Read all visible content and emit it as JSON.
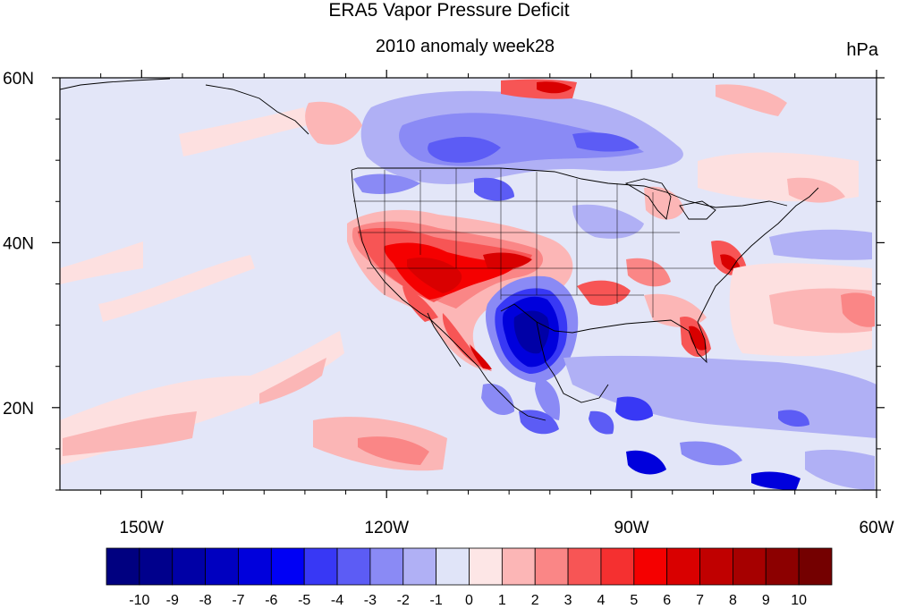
{
  "title": "ERA5 Vapor Pressure Deficit",
  "subtitle": "2010 anomaly week28",
  "units": "hPa",
  "map": {
    "lon_range": [
      -160,
      -60
    ],
    "lat_range": [
      10,
      60
    ],
    "x_ticks": [
      {
        "lon": -150,
        "label": "150W"
      },
      {
        "lon": -120,
        "label": "120W"
      },
      {
        "lon": -90,
        "label": "90W"
      },
      {
        "lon": -60,
        "label": "60W"
      }
    ],
    "y_ticks": [
      {
        "lat": 60,
        "label": "60N"
      },
      {
        "lat": 40,
        "label": "40N"
      },
      {
        "lat": 20,
        "label": "20N"
      }
    ]
  },
  "colorbar": {
    "labels": [
      "-10",
      "-9",
      "-8",
      "-7",
      "-6",
      "-5",
      "-4",
      "-3",
      "-2",
      "-1",
      "0",
      "1",
      "2",
      "3",
      "4",
      "5",
      "6",
      "7",
      "8",
      "9",
      "10"
    ],
    "colors": [
      "#000080",
      "#00008c",
      "#0000a6",
      "#0000c0",
      "#0000dc",
      "#0000f5",
      "#3838f5",
      "#5c5cf5",
      "#8a8af5",
      "#b0b0f5",
      "#e0e4f8",
      "#fde6e6",
      "#fcb6b6",
      "#fa8686",
      "#f75555",
      "#f53030",
      "#f50000",
      "#d90000",
      "#c00000",
      "#a60000",
      "#8c0000",
      "#740000"
    ]
  }
}
